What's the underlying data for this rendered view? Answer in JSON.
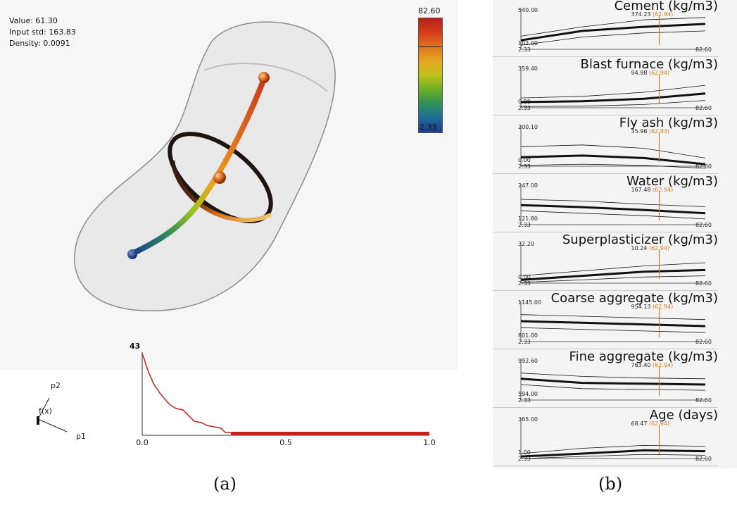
{
  "stats": {
    "value_line": "Value: 61.30",
    "input_std_line": "Input std: 163.83",
    "density_line": "Density: 0.0091"
  },
  "colorbar": {
    "max_label": "82.60",
    "min_label": "2.33"
  },
  "axes": {
    "p2": "p2",
    "fx": "f(x)",
    "p1": "p1"
  },
  "histogram": {
    "ymax_label": "43",
    "x_ticks": [
      "0.0",
      "0.5",
      "1.0"
    ],
    "bar_color": "#c8201c"
  },
  "panel_labels": {
    "a": "(a)",
    "b": "(b)"
  },
  "plots": [
    {
      "title": "Cement (kg/m3)",
      "ymax": "540.00",
      "ymin": "102.00",
      "xmin": "2.33",
      "xmax": "82.60",
      "value": "374.23",
      "accent": "(62.94)",
      "curve": [
        0.22,
        0.45,
        0.55,
        0.62
      ],
      "upper": [
        0.32,
        0.55,
        0.72,
        0.78
      ],
      "lower": [
        0.1,
        0.3,
        0.4,
        0.45
      ]
    },
    {
      "title": "Blast furnace (kg/m3)",
      "ymax": "359.40",
      "ymin": "0.00",
      "xmin": "2.33",
      "xmax": "82.60",
      "value": "94.98",
      "accent": "(62.94)",
      "curve": [
        0.14,
        0.16,
        0.22,
        0.35
      ],
      "upper": [
        0.24,
        0.28,
        0.38,
        0.55
      ],
      "lower": [
        0.03,
        0.04,
        0.08,
        0.18
      ]
    },
    {
      "title": "Fly ash (kg/m3)",
      "ymax": "200.10",
      "ymin": "0.00",
      "xmin": "2.33",
      "xmax": "82.60",
      "value": "35.96",
      "accent": "(62.94)",
      "curve": [
        0.22,
        0.26,
        0.2,
        0.05
      ],
      "upper": [
        0.48,
        0.52,
        0.44,
        0.2
      ],
      "lower": [
        0.02,
        0.05,
        0.02,
        -0.05
      ]
    },
    {
      "title": "Water (kg/m3)",
      "ymax": "247.00",
      "ymin": "121.80",
      "xmin": "2.33",
      "xmax": "82.60",
      "value": "167.48",
      "accent": "(62.94)",
      "curve": [
        0.48,
        0.43,
        0.36,
        0.28
      ],
      "upper": [
        0.62,
        0.58,
        0.5,
        0.44
      ],
      "lower": [
        0.34,
        0.28,
        0.22,
        0.14
      ]
    },
    {
      "title": "Superplasticizer (kg/m3)",
      "ymax": "32.20",
      "ymin": "0.00",
      "xmin": "2.33",
      "xmax": "82.60",
      "value": "10.24",
      "accent": "(62.94)",
      "curve": [
        0.08,
        0.18,
        0.28,
        0.32
      ],
      "upper": [
        0.18,
        0.3,
        0.42,
        0.5
      ],
      "lower": [
        0.02,
        0.08,
        0.15,
        0.18
      ]
    },
    {
      "title": "Coarse aggregate (kg/m3)",
      "ymax": "1145.00",
      "ymin": "801.00",
      "xmin": "2.33",
      "xmax": "82.60",
      "value": "954.13",
      "accent": "(62.94)",
      "curve": [
        0.5,
        0.46,
        0.42,
        0.38
      ],
      "upper": [
        0.66,
        0.62,
        0.58,
        0.54
      ],
      "lower": [
        0.34,
        0.3,
        0.26,
        0.22
      ]
    },
    {
      "title": "Fine aggregate (kg/m3)",
      "ymax": "992.60",
      "ymin": "594.00",
      "xmin": "2.33",
      "xmax": "82.60",
      "value": "763.40",
      "accent": "(62.94)",
      "curve": [
        0.52,
        0.42,
        0.4,
        0.38
      ],
      "upper": [
        0.66,
        0.58,
        0.54,
        0.52
      ],
      "lower": [
        0.38,
        0.28,
        0.26,
        0.24
      ]
    },
    {
      "title": "Age (days)",
      "ymax": "365.00",
      "ymin": "1.00",
      "xmin": "2.33",
      "xmax": "82.60",
      "value": "68.47",
      "accent": "(62.94)",
      "curve": [
        0.05,
        0.12,
        0.2,
        0.18
      ],
      "upper": [
        0.12,
        0.25,
        0.32,
        0.3
      ],
      "lower": [
        0.0,
        0.05,
        0.1,
        0.08
      ]
    }
  ]
}
